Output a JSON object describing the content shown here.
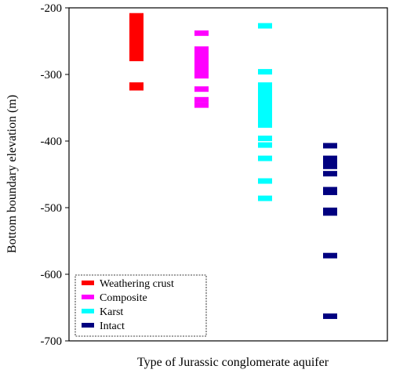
{
  "chart_data": {
    "type": "scatter",
    "xlabel": "Type of Jurassic conglomerate aquifer",
    "ylabel": "Bottom boundary elevation (m)",
    "ylim": [
      -700,
      -200
    ],
    "yticks": [
      -200,
      -300,
      -400,
      -500,
      -600,
      -700
    ],
    "ytick_labels": [
      "-200",
      "-300",
      "-400",
      "-500",
      "-600",
      "-700"
    ],
    "grid": false,
    "legend_position": "bottom-left",
    "series": [
      {
        "name": "Weathering crust",
        "color": "#ff0000",
        "values": [
          -212,
          -216,
          -220,
          -224,
          -228,
          -232,
          -236,
          -240,
          -244,
          -248,
          -252,
          -256,
          -260,
          -264,
          -268,
          -272,
          -276,
          -316,
          -320
        ]
      },
      {
        "name": "Composite",
        "color": "#ff00ff",
        "values": [
          -238,
          -262,
          -266,
          -270,
          -274,
          -278,
          -282,
          -286,
          -290,
          -294,
          -298,
          -302,
          -322,
          -338,
          -346
        ]
      },
      {
        "name": "Karst",
        "color": "#00ffff",
        "values": [
          -227,
          -296,
          -316,
          -320,
          -324,
          -328,
          -332,
          -336,
          -340,
          -344,
          -348,
          -352,
          -356,
          -360,
          -364,
          -368,
          -372,
          -376,
          -396,
          -406,
          -426,
          -460,
          -486
        ]
      },
      {
        "name": "Intact",
        "color": "#000080",
        "values": [
          -407,
          -426,
          -432,
          -438,
          -449,
          -473,
          -477,
          -504,
          -508,
          -572,
          -663
        ]
      }
    ]
  }
}
